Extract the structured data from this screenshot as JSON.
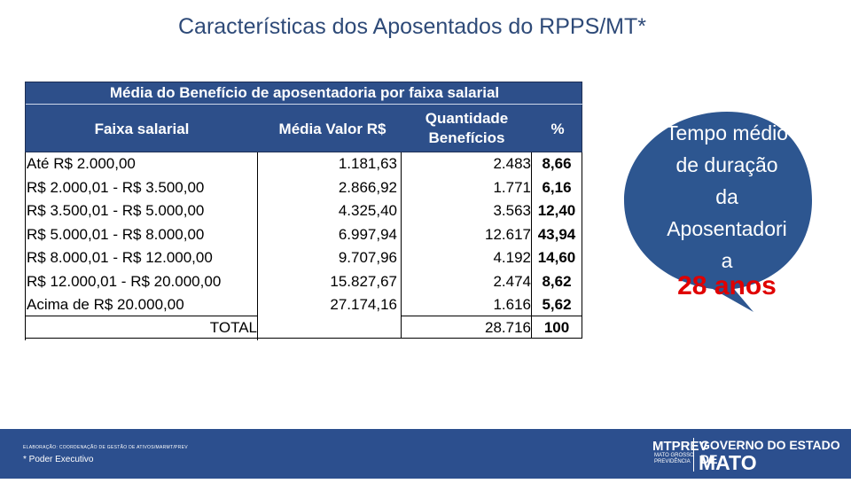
{
  "title": "Características dos Aposentados do RPPS/MT*",
  "table": {
    "caption": "Média do Benefício de aposentadoria por faixa salarial",
    "headers": {
      "faixa": "Faixa salarial",
      "media": "Média Valor R$",
      "qtd_line1": "Quantidade",
      "qtd_line2": "Benefícios",
      "pct": "%"
    },
    "rows": [
      {
        "faixa": "Até R$ 2.000,00",
        "media": "1.181,63",
        "qtd": "2.483",
        "pct": "8,66"
      },
      {
        "faixa": "R$ 2.000,01 - R$ 3.500,00",
        "media": "2.866,92",
        "qtd": "1.771",
        "pct": "6,16"
      },
      {
        "faixa": "R$ 3.500,01 - R$ 5.000,00",
        "media": "4.325,40",
        "qtd": "3.563",
        "pct": "12,40"
      },
      {
        "faixa": "R$ 5.000,01 - R$ 8.000,00",
        "media": "6.997,94",
        "qtd": "12.617",
        "pct": "43,94"
      },
      {
        "faixa": "R$ 8.000,01 - R$ 12.000,00",
        "media": "9.707,96",
        "qtd": "4.192",
        "pct": "14,60"
      },
      {
        "faixa": "R$ 12.000,01 - R$ 20.000,00",
        "media": "15.827,67",
        "qtd": "2.474",
        "pct": "8,62"
      },
      {
        "faixa": "Acima de R$ 20.000,00",
        "media": "27.174,16",
        "qtd": "1.616",
        "pct": "5,62"
      }
    ],
    "total": {
      "label": "TOTAL",
      "qtd": "28.716",
      "pct": "100"
    }
  },
  "bubble": {
    "lines": [
      "Tempo médio",
      "de duração",
      "da",
      "Aposentadori",
      "a"
    ],
    "highlight": "28 anos",
    "fill": "#2d5690",
    "highlight_color": "#e00000"
  },
  "footer": {
    "small_text": "ELABORAÇÃO: COORDENAÇÃO DE GESTÃO DE ATIVOS/MARMT/PREV",
    "note": "* Poder Executivo",
    "logo_main": "MTPREV",
    "logo_sub1": "MATO GROSSO",
    "logo_sub2": "PREVIDÊNCIA",
    "gov_line": "GOVERNO DO ESTADO DE",
    "state_line": "MATO GROSSO"
  }
}
